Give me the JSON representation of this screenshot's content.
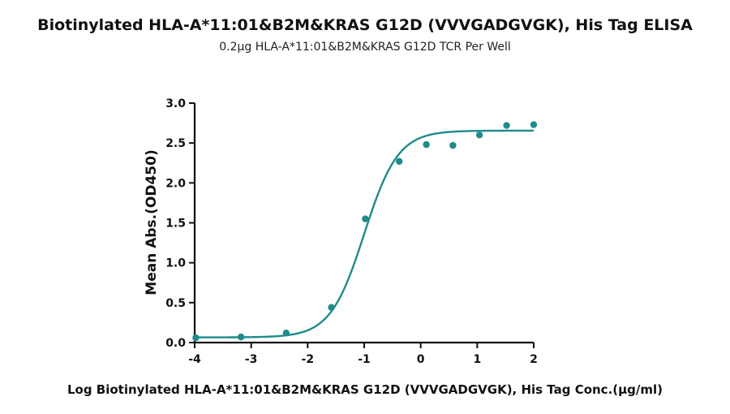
{
  "chart_data": {
    "type": "scatter",
    "title": "Biotinylated HLA-A*11:01&B2M&KRAS G12D (VVVGADGVGK), His Tag ELISA",
    "subtitle": "0.2μg HLA-A*11:01&B2M&KRAS G12D TCR Per Well",
    "xlabel": "Log Biotinylated HLA-A*11:01&B2M&KRAS G12D (VVVGADGVGK), His Tag Conc.(μg/ml)",
    "ylabel": "Mean Abs.(OD450)",
    "xlim": [
      -4,
      2
    ],
    "ylim": [
      0,
      3
    ],
    "x_ticks": [
      -4,
      -3,
      -2,
      -1,
      0,
      1,
      2
    ],
    "x_tick_labels": [
      "-4",
      "-3",
      "-2",
      "-1",
      "0",
      "1",
      "2"
    ],
    "y_ticks": [
      0,
      0.5,
      1,
      1.5,
      2,
      2.5,
      3
    ],
    "y_tick_labels": [
      "0.0",
      "0.5",
      "1.0",
      "1.5",
      "2.0",
      "2.5",
      "3.0"
    ],
    "grid": false,
    "legend": "none",
    "color": "#1f8a8a",
    "series": [
      {
        "points": [
          {
            "x": -3.98,
            "y": 0.06
          },
          {
            "x": -3.18,
            "y": 0.07
          },
          {
            "x": -2.38,
            "y": 0.12
          },
          {
            "x": -1.58,
            "y": 0.44
          },
          {
            "x": -0.98,
            "y": 1.55
          },
          {
            "x": -0.38,
            "y": 2.27
          },
          {
            "x": 0.1,
            "y": 2.48
          },
          {
            "x": 0.57,
            "y": 2.47
          },
          {
            "x": 1.04,
            "y": 2.6
          },
          {
            "x": 1.52,
            "y": 2.72
          },
          {
            "x": 2.0,
            "y": 2.73
          }
        ],
        "fit": {
          "model": "4PL",
          "bottom": 0.065,
          "top": 2.655,
          "logEC50": -1.0,
          "hill": 1.45
        }
      }
    ]
  }
}
